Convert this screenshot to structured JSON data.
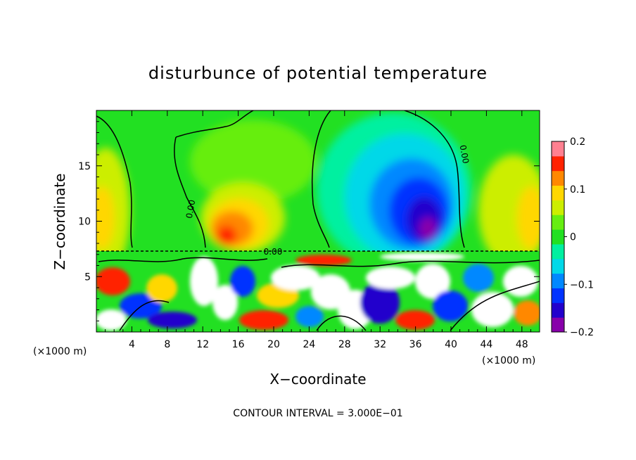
{
  "chart_data": {
    "type": "heatmap",
    "title": "disturbunce of potential temperature",
    "xlabel": "X−coordinate",
    "ylabel": "Z−coordinate",
    "x_unit_left": "(×1000 m)",
    "x_unit_right": "(×1000 m)",
    "xlim": [
      0,
      50
    ],
    "ylim": [
      0,
      20
    ],
    "x_ticks": [
      4,
      8,
      12,
      16,
      20,
      24,
      28,
      32,
      36,
      40,
      44,
      48
    ],
    "y_ticks": [
      5,
      10,
      15
    ],
    "colorbar": {
      "range": [
        -0.2,
        0.2
      ],
      "tick_labels": [
        "0.2",
        "0.1",
        "0",
        "−0.1",
        "−0.2"
      ],
      "tick_values": [
        0.2,
        0.1,
        0,
        -0.1,
        -0.2
      ]
    },
    "contour_label": "0.00",
    "contour_interval_text": "CONTOUR INTERVAL = 3.000E−01",
    "field_features": [
      {
        "x": 16,
        "z": 10.5,
        "value": 0.14
      },
      {
        "x": 37,
        "z": 10.5,
        "value": -0.2
      },
      {
        "x": 30,
        "z": 14,
        "value": -0.05
      },
      {
        "x": 1,
        "z": 12,
        "value": 0.09
      },
      {
        "x": 49,
        "z": 11,
        "value": 0.08
      }
    ]
  },
  "colors": {
    "colormap": [
      "#8800aa",
      "#2200cc",
      "#0033ff",
      "#0088ff",
      "#00d8e8",
      "#00f0a0",
      "#22e022",
      "#66ee11",
      "#ccee00",
      "#ffd700",
      "#ff8800",
      "#ff2200",
      "#ff8090"
    ],
    "contour": "#000000"
  }
}
